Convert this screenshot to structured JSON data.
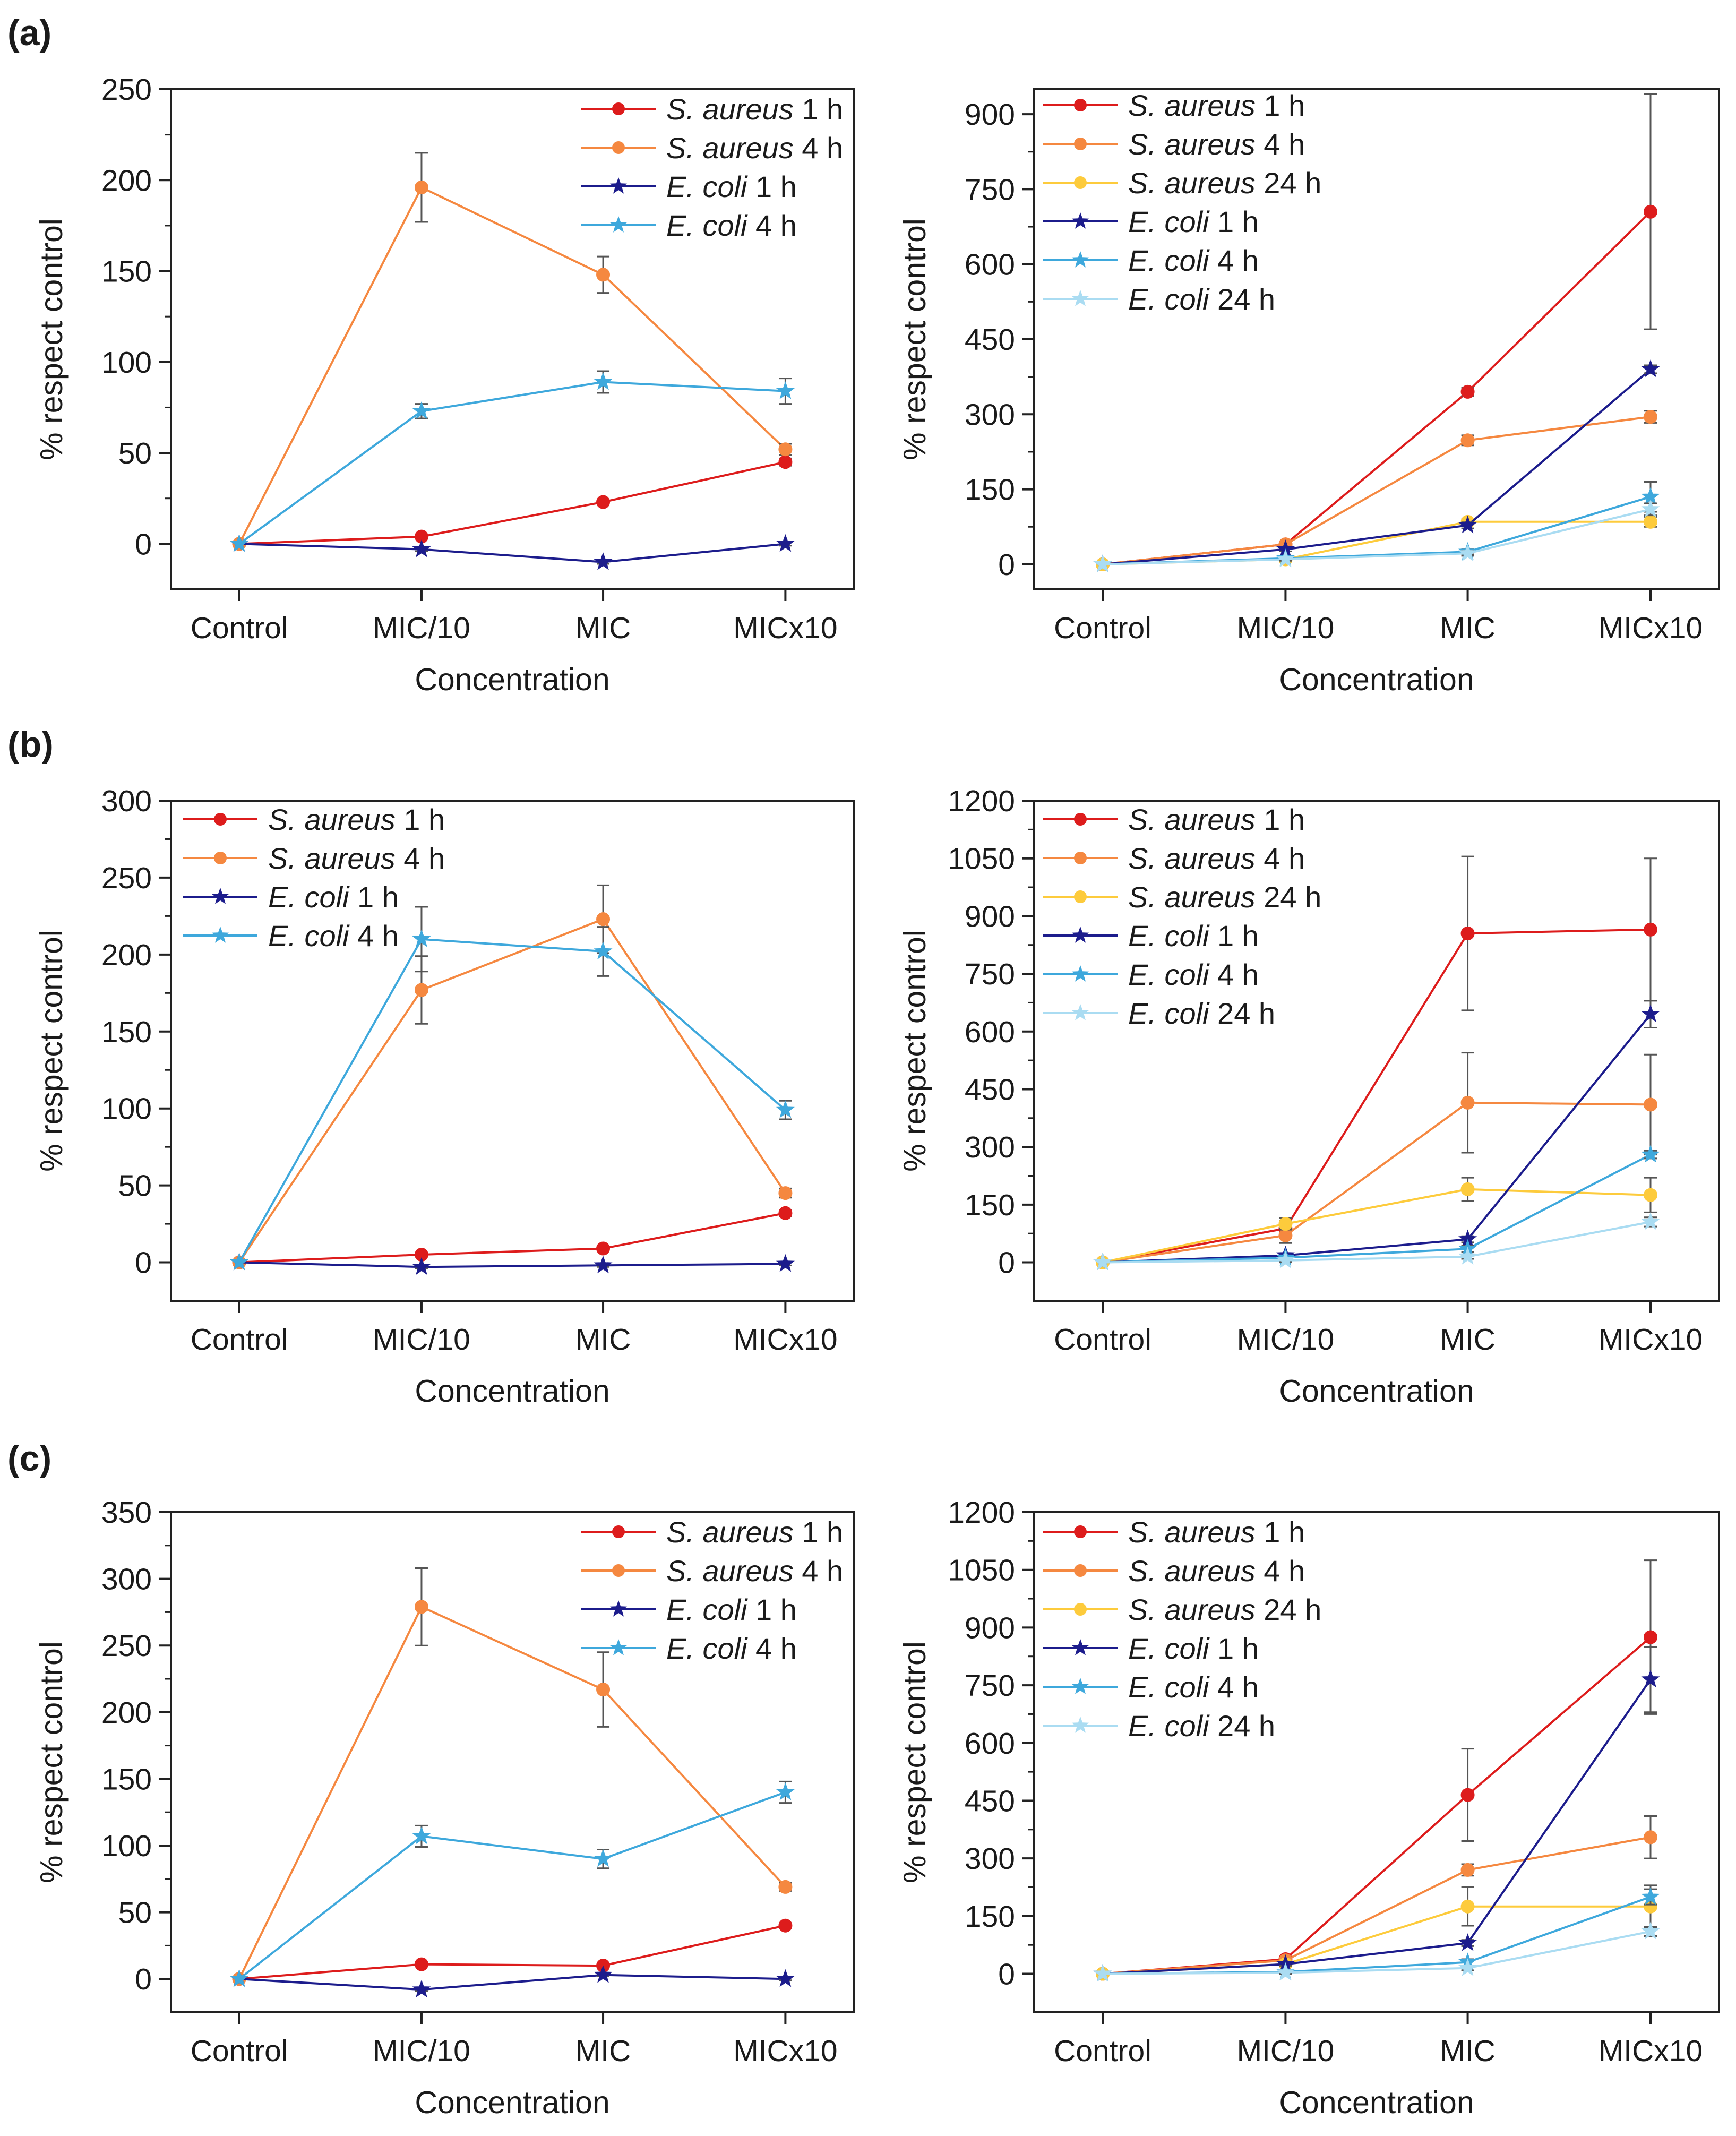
{
  "figure": {
    "panel_labels": [
      "(a)",
      "(b)",
      "(c)"
    ]
  },
  "series_styles": {
    "S. aureus 1 h": {
      "color": "#dd1c1c",
      "marker": "circle"
    },
    "S. aureus 4 h": {
      "color": "#f58840",
      "marker": "circle"
    },
    "S. aureus 24 h": {
      "color": "#fdcb3c",
      "marker": "circle"
    },
    "E. coli 1 h": {
      "color": "#1c1c8c",
      "marker": "star"
    },
    "E. coli 4 h": {
      "color": "#3ea8dc",
      "marker": "star"
    },
    "E. coli 24 h": {
      "color": "#aadcf2",
      "marker": "star"
    }
  },
  "chart_data": [
    {
      "id": "a-left",
      "panel": "(a)",
      "type": "line",
      "categories": [
        "Control",
        "MIC/10",
        "MIC",
        "MICx10"
      ],
      "xlabel": "Concentration",
      "ylabel": "% respect control",
      "ylim": [
        -25,
        250
      ],
      "yticks": [
        0,
        50,
        100,
        150,
        200,
        250
      ],
      "legend_position": "top-right",
      "series": [
        {
          "name": "S. aureus 1 h",
          "species": "S. aureus",
          "time": " 1 h",
          "values": [
            0,
            4,
            23,
            45
          ],
          "errors": [
            0,
            1,
            1,
            2
          ]
        },
        {
          "name": "S. aureus 4 h",
          "species": "S. aureus",
          "time": " 4 h",
          "values": [
            0,
            196,
            148,
            52
          ],
          "errors": [
            0,
            19,
            10,
            3
          ]
        },
        {
          "name": "E. coli 1 h",
          "species": "E. coli",
          "time": " 1 h",
          "values": [
            0,
            -3,
            -10,
            0
          ],
          "errors": [
            0,
            1,
            1,
            1
          ]
        },
        {
          "name": "E. coli 4 h",
          "species": "E. coli",
          "time": " 4 h",
          "values": [
            0,
            73,
            89,
            84
          ],
          "errors": [
            0,
            4,
            6,
            7
          ]
        }
      ]
    },
    {
      "id": "a-right",
      "panel": "(a)",
      "type": "line",
      "categories": [
        "Control",
        "MIC/10",
        "MIC",
        "MICx10"
      ],
      "xlabel": "Concentration",
      "ylabel": "% respect control",
      "ylim": [
        -50,
        950
      ],
      "yticks": [
        0,
        150,
        300,
        450,
        600,
        750,
        900
      ],
      "legend_position": "top-left",
      "series": [
        {
          "name": "S. aureus 1 h",
          "species": "S. aureus",
          "time": " 1 h",
          "values": [
            0,
            40,
            345,
            705
          ],
          "errors": [
            0,
            5,
            8,
            235
          ]
        },
        {
          "name": "S. aureus 4 h",
          "species": "S. aureus",
          "time": " 4 h",
          "values": [
            0,
            40,
            248,
            295
          ],
          "errors": [
            0,
            5,
            10,
            12
          ]
        },
        {
          "name": "S. aureus 24 h",
          "species": "S. aureus",
          "time": " 24 h",
          "values": [
            0,
            10,
            85,
            85
          ],
          "errors": [
            0,
            3,
            5,
            10
          ]
        },
        {
          "name": "E. coli 1 h",
          "species": "E. coli",
          "time": " 1 h",
          "values": [
            0,
            30,
            78,
            390
          ],
          "errors": [
            0,
            4,
            6,
            8
          ]
        },
        {
          "name": "E. coli 4 h",
          "species": "E. coli",
          "time": " 4 h",
          "values": [
            0,
            12,
            25,
            135
          ],
          "errors": [
            0,
            3,
            5,
            30
          ]
        },
        {
          "name": "E. coli 24 h",
          "species": "E. coli",
          "time": " 24 h",
          "values": [
            0,
            10,
            22,
            110
          ],
          "errors": [
            0,
            3,
            5,
            12
          ]
        }
      ]
    },
    {
      "id": "b-left",
      "panel": "(b)",
      "type": "line",
      "categories": [
        "Control",
        "MIC/10",
        "MIC",
        "MICx10"
      ],
      "xlabel": "Concentration",
      "ylabel": "% respect control",
      "ylim": [
        -25,
        300
      ],
      "yticks": [
        0,
        50,
        100,
        150,
        200,
        250,
        300
      ],
      "legend_position": "top-left",
      "series": [
        {
          "name": "S. aureus 1 h",
          "species": "S. aureus",
          "time": " 1 h",
          "values": [
            0,
            5,
            9,
            32
          ],
          "errors": [
            0,
            1,
            1,
            2
          ]
        },
        {
          "name": "S. aureus 4 h",
          "species": "S. aureus",
          "time": " 4 h",
          "values": [
            0,
            177,
            223,
            45
          ],
          "errors": [
            0,
            22,
            22,
            3
          ]
        },
        {
          "name": "E. coli 1 h",
          "species": "E. coli",
          "time": " 1 h",
          "values": [
            0,
            -3,
            -2,
            -1
          ],
          "errors": [
            0,
            1,
            1,
            1
          ]
        },
        {
          "name": "E. coli 4 h",
          "species": "E. coli",
          "time": " 4 h",
          "values": [
            0,
            210,
            202,
            99
          ],
          "errors": [
            0,
            21,
            16,
            6
          ]
        }
      ]
    },
    {
      "id": "b-right",
      "panel": "(b)",
      "type": "line",
      "categories": [
        "Control",
        "MIC/10",
        "MIC",
        "MICx10"
      ],
      "xlabel": "Concentration",
      "ylabel": "% respect control",
      "ylim": [
        -100,
        1200
      ],
      "yticks": [
        0,
        150,
        300,
        450,
        600,
        750,
        900,
        1050,
        1200
      ],
      "legend_position": "top-left",
      "series": [
        {
          "name": "S. aureus 1 h",
          "species": "S. aureus",
          "time": " 1 h",
          "values": [
            0,
            88,
            855,
            865
          ],
          "errors": [
            0,
            20,
            200,
            185
          ]
        },
        {
          "name": "S. aureus 4 h",
          "species": "S. aureus",
          "time": " 4 h",
          "values": [
            0,
            70,
            415,
            410
          ],
          "errors": [
            0,
            20,
            130,
            130
          ]
        },
        {
          "name": "S. aureus 24 h",
          "species": "S. aureus",
          "time": " 24 h",
          "values": [
            0,
            100,
            190,
            175
          ],
          "errors": [
            0,
            15,
            30,
            45
          ]
        },
        {
          "name": "E. coli 1 h",
          "species": "E. coli",
          "time": " 1 h",
          "values": [
            0,
            18,
            60,
            645
          ],
          "errors": [
            0,
            5,
            8,
            35
          ]
        },
        {
          "name": "E. coli 4 h",
          "species": "E. coli",
          "time": " 4 h",
          "values": [
            0,
            12,
            35,
            280
          ],
          "errors": [
            0,
            5,
            8,
            10
          ]
        },
        {
          "name": "E. coli 24 h",
          "species": "E. coli",
          "time": " 24 h",
          "values": [
            0,
            5,
            15,
            105
          ],
          "errors": [
            0,
            4,
            6,
            12
          ]
        }
      ]
    },
    {
      "id": "c-left",
      "panel": "(c)",
      "type": "line",
      "categories": [
        "Control",
        "MIC/10",
        "MIC",
        "MICx10"
      ],
      "xlabel": "Concentration",
      "ylabel": "% respect control",
      "ylim": [
        -25,
        350
      ],
      "yticks": [
        0,
        50,
        100,
        150,
        200,
        250,
        300,
        350
      ],
      "legend_position": "top-right",
      "series": [
        {
          "name": "S. aureus 1 h",
          "species": "S. aureus",
          "time": " 1 h",
          "values": [
            0,
            11,
            10,
            40
          ],
          "errors": [
            0,
            1,
            1,
            2
          ]
        },
        {
          "name": "S. aureus 4 h",
          "species": "S. aureus",
          "time": " 4 h",
          "values": [
            0,
            279,
            217,
            69
          ],
          "errors": [
            0,
            29,
            28,
            3
          ]
        },
        {
          "name": "E. coli 1 h",
          "species": "E. coli",
          "time": " 1 h",
          "values": [
            0,
            -8,
            3,
            0
          ],
          "errors": [
            0,
            1,
            1,
            1
          ]
        },
        {
          "name": "E. coli 4 h",
          "species": "E. coli",
          "time": " 4 h",
          "values": [
            0,
            107,
            90,
            140
          ],
          "errors": [
            0,
            8,
            7,
            8
          ]
        }
      ]
    },
    {
      "id": "c-right",
      "panel": "(c)",
      "type": "line",
      "categories": [
        "Control",
        "MIC/10",
        "MIC",
        "MICx10"
      ],
      "xlabel": "Concentration",
      "ylabel": "% respect control",
      "ylim": [
        -100,
        1200
      ],
      "yticks": [
        0,
        150,
        300,
        450,
        600,
        750,
        900,
        1050,
        1200
      ],
      "legend_position": "top-left",
      "series": [
        {
          "name": "S. aureus 1 h",
          "species": "S. aureus",
          "time": " 1 h",
          "values": [
            0,
            38,
            465,
            875
          ],
          "errors": [
            0,
            5,
            120,
            200
          ]
        },
        {
          "name": "S. aureus 4 h",
          "species": "S. aureus",
          "time": " 4 h",
          "values": [
            0,
            35,
            270,
            355
          ],
          "errors": [
            0,
            5,
            15,
            55
          ]
        },
        {
          "name": "S. aureus 24 h",
          "species": "S. aureus",
          "time": " 24 h",
          "values": [
            0,
            25,
            175,
            175
          ],
          "errors": [
            0,
            5,
            50,
            55
          ]
        },
        {
          "name": "E. coli 1 h",
          "species": "E. coli",
          "time": " 1 h",
          "values": [
            0,
            25,
            80,
            765
          ],
          "errors": [
            0,
            4,
            8,
            85
          ]
        },
        {
          "name": "E. coli 4 h",
          "species": "E. coli",
          "time": " 4 h",
          "values": [
            0,
            5,
            30,
            200
          ],
          "errors": [
            0,
            4,
            8,
            20
          ]
        },
        {
          "name": "E. coli 24 h",
          "species": "E. coli",
          "time": " 24 h",
          "values": [
            0,
            3,
            15,
            110
          ],
          "errors": [
            0,
            3,
            6,
            12
          ]
        }
      ]
    }
  ]
}
